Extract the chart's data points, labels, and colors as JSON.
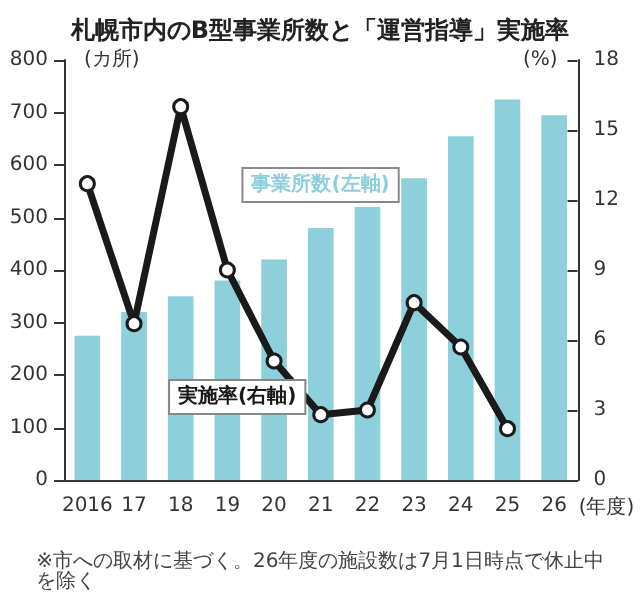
{
  "chart_data": {
    "type": "bar",
    "title": "札幌市内のB型事業所数と「運営指導」実施率",
    "categories": [
      "2016",
      "17",
      "18",
      "19",
      "20",
      "21",
      "22",
      "23",
      "24",
      "25",
      "26"
    ],
    "xlabel": "(年度)",
    "ylabel": "(カ所)",
    "y2label": "(%)",
    "series": [
      {
        "name": "事業所数(左軸)",
        "color": "#8dd0dc",
        "values": [
          275,
          320,
          350,
          380,
          420,
          480,
          520,
          575,
          655,
          725,
          695
        ]
      },
      {
        "name": "実施率(右軸)",
        "type": "line",
        "axis": "y2",
        "color": "#1a1a1a",
        "marker": "circle",
        "values": [
          12.7,
          6.7,
          16.0,
          9.0,
          5.1,
          2.8,
          3.0,
          7.6,
          5.7,
          2.2,
          null
        ]
      }
    ],
    "ylim": [
      0,
      800
    ],
    "yticks": [
      0,
      100,
      200,
      300,
      400,
      500,
      600,
      700,
      800
    ],
    "y2lim": [
      0,
      18
    ],
    "y2ticks": [
      0,
      3,
      6,
      9,
      12,
      15,
      18
    ],
    "grid": false,
    "legend": false,
    "annotations": [
      "※市への取材に基づく。26年度の施設数は7月1日時点で休止中を除く"
    ]
  }
}
